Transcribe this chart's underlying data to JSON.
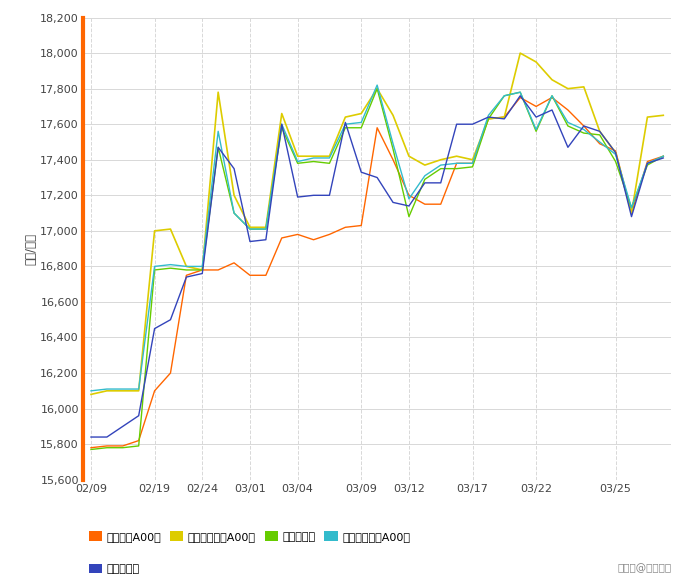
{
  "ylabel": "（元/吨）",
  "ylim": [
    15600,
    18200
  ],
  "yticks": [
    15600,
    15800,
    16000,
    16200,
    16400,
    16600,
    16800,
    17000,
    17200,
    17400,
    17600,
    17800,
    18000,
    18200
  ],
  "background_color": "#ffffff",
  "grid_color": "#d8d8d8",
  "yaxis_color": "#FF6600",
  "series": [
    {
      "name": "长江有色A00铝",
      "color": "#FF6600",
      "lw": 1.0,
      "data_x": [
        0,
        1,
        2,
        3,
        4,
        5,
        6,
        7,
        8,
        9,
        10,
        11,
        12,
        13,
        14,
        15,
        16,
        17,
        18,
        19,
        20,
        21,
        22,
        23,
        24,
        25,
        26,
        27,
        28,
        29,
        30,
        31,
        32,
        33,
        34,
        35,
        36
      ],
      "data_y": [
        15780,
        15790,
        15790,
        15820,
        16100,
        16200,
        16750,
        16780,
        16780,
        16820,
        16750,
        16750,
        16960,
        16980,
        16950,
        16980,
        17020,
        17030,
        17580,
        17400,
        17200,
        17150,
        17150,
        17380,
        17380,
        17630,
        17640,
        17750,
        17700,
        17750,
        17680,
        17590,
        17490,
        17450,
        17100,
        17390,
        17420
      ]
    },
    {
      "name": "南海有色佛山A00铝",
      "color": "#DDCC00",
      "lw": 1.2,
      "data_x": [
        0,
        1,
        2,
        3,
        4,
        5,
        6,
        7,
        8,
        9,
        10,
        11,
        12,
        13,
        14,
        15,
        16,
        17,
        18,
        19,
        20,
        21,
        22,
        23,
        24,
        25,
        26,
        27,
        28,
        29,
        30,
        31,
        32,
        33,
        34,
        35,
        36
      ],
      "data_y": [
        16080,
        16100,
        16100,
        16100,
        17000,
        17010,
        16800,
        16780,
        17780,
        17200,
        17020,
        17020,
        17660,
        17420,
        17420,
        17420,
        17640,
        17660,
        17800,
        17650,
        17420,
        17370,
        17400,
        17420,
        17400,
        17630,
        17640,
        18000,
        17950,
        17850,
        17800,
        17810,
        17560,
        17440,
        17100,
        17640,
        17650
      ]
    },
    {
      "name": "上海现货铝",
      "color": "#66CC00",
      "lw": 1.0,
      "data_x": [
        0,
        1,
        2,
        3,
        4,
        5,
        6,
        7,
        8,
        9,
        10,
        11,
        12,
        13,
        14,
        15,
        16,
        17,
        18,
        19,
        20,
        21,
        22,
        23,
        24,
        25,
        26,
        27,
        28,
        29,
        30,
        31,
        32,
        33,
        34,
        35,
        36
      ],
      "data_y": [
        15770,
        15780,
        15780,
        15790,
        16780,
        16790,
        16780,
        16780,
        17470,
        17100,
        17010,
        17010,
        17580,
        17380,
        17390,
        17380,
        17580,
        17580,
        17800,
        17460,
        17080,
        17290,
        17350,
        17350,
        17360,
        17630,
        17760,
        17780,
        17560,
        17760,
        17590,
        17550,
        17540,
        17390,
        17130,
        17370,
        17420
      ]
    },
    {
      "name": "广东南储华南A00铝",
      "color": "#33BBCC",
      "lw": 1.0,
      "data_x": [
        0,
        1,
        2,
        3,
        4,
        5,
        6,
        7,
        8,
        9,
        10,
        11,
        12,
        13,
        14,
        15,
        16,
        17,
        18,
        19,
        20,
        21,
        22,
        23,
        24,
        25,
        26,
        27,
        28,
        29,
        30,
        31,
        32,
        33,
        34,
        35,
        36
      ],
      "data_y": [
        16100,
        16110,
        16110,
        16110,
        16800,
        16810,
        16800,
        16800,
        17560,
        17100,
        17010,
        17010,
        17600,
        17390,
        17410,
        17410,
        17600,
        17610,
        17820,
        17490,
        17180,
        17310,
        17370,
        17380,
        17380,
        17650,
        17760,
        17780,
        17570,
        17760,
        17610,
        17570,
        17500,
        17430,
        17130,
        17380,
        17420
      ]
    },
    {
      "name": "上海期货铝",
      "color": "#3344BB",
      "lw": 1.0,
      "data_x": [
        0,
        1,
        2,
        3,
        4,
        5,
        6,
        7,
        8,
        9,
        10,
        11,
        12,
        13,
        14,
        15,
        16,
        17,
        18,
        19,
        20,
        21,
        22,
        23,
        24,
        25,
        26,
        27,
        28,
        29,
        30,
        31,
        32,
        33,
        34,
        35,
        36
      ],
      "data_y": [
        15840,
        15840,
        15900,
        15960,
        16450,
        16500,
        16740,
        16760,
        17470,
        17350,
        16940,
        16950,
        17600,
        17190,
        17200,
        17200,
        17610,
        17330,
        17300,
        17160,
        17140,
        17270,
        17270,
        17600,
        17600,
        17640,
        17630,
        17760,
        17640,
        17680,
        17470,
        17590,
        17560,
        17440,
        17080,
        17380,
        17410
      ]
    }
  ],
  "xtick_positions": [
    0,
    4,
    7,
    10,
    13,
    17,
    20,
    24,
    28,
    33,
    36
  ],
  "xtick_labels": [
    "02/09",
    "02/19",
    "02/24",
    "03/01",
    "03/04",
    "03/09",
    "03/12",
    "03/17",
    "03/22",
    "03/25",
    ""
  ],
  "legend_entries": [
    "长江有色A00铝",
    "南海有色佛山A00铝",
    "上海现货铝",
    "广东南储华南A00铝",
    "上海期货铝"
  ],
  "legend_colors": [
    "#FF6600",
    "#DDCC00",
    "#66CC00",
    "#33BBCC",
    "#3344BB"
  ],
  "watermark": "搜狐号@上海铝锅"
}
